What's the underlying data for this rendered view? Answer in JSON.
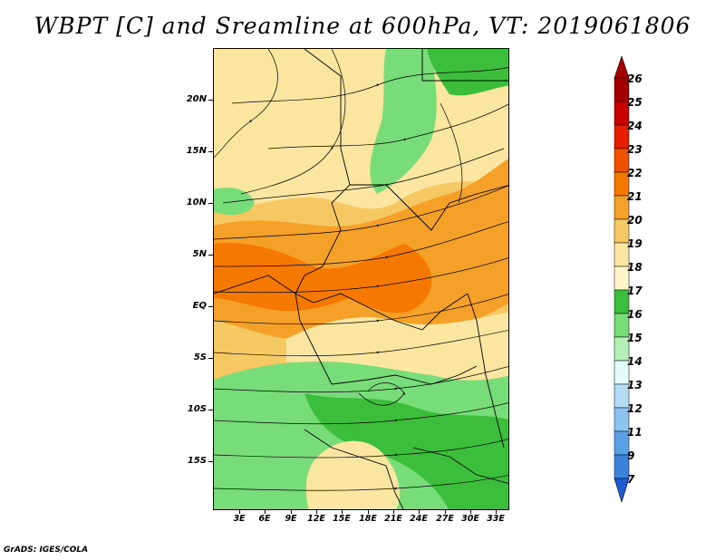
{
  "title": "WBPT [C] and Sreamline at 600hPa, VT: 2019061806",
  "footer": "GrADS: IGES/COLA",
  "map": {
    "lat_labels": [
      "20N",
      "15N",
      "10N",
      "5N",
      "EQ",
      "5S",
      "10S",
      "15S"
    ],
    "lon_labels": [
      "3E",
      "6E",
      "9E",
      "12E",
      "15E",
      "18E",
      "21E",
      "24E",
      "27E",
      "30E",
      "33E"
    ],
    "field": "wet-bulb potential temperature",
    "overlay": "streamlines"
  },
  "colorbar": {
    "labels": [
      "26",
      "25",
      "24",
      "23",
      "22",
      "21",
      "20",
      "19",
      "18",
      "17",
      "16",
      "15",
      "14",
      "13",
      "12",
      "11",
      "9",
      "7"
    ],
    "colors": [
      "#a50000",
      "#c80000",
      "#e61e00",
      "#f05000",
      "#f57800",
      "#f5a028",
      "#f5c864",
      "#fae6a0",
      "#fff5c8",
      "#3cbe3c",
      "#78dc78",
      "#b4f0b4",
      "#e1fafa",
      "#b4dcf5",
      "#8cc3f0",
      "#5aa0e6",
      "#3c82dc",
      "#1e5ad2"
    ],
    "top_arrow_color": "#a50000",
    "bottom_arrow_color": "#1e5ad2"
  }
}
